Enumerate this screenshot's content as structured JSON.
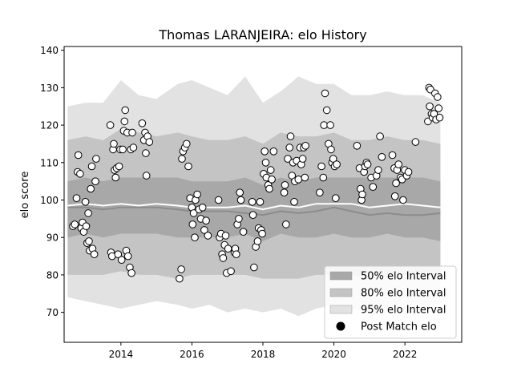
{
  "chart_data": {
    "type": "scatter",
    "title": "Thomas LARANJEIRA: elo History",
    "xlabel": "",
    "ylabel": "elo score",
    "xlim": [
      2012.4,
      2023.6
    ],
    "ylim": [
      62,
      141
    ],
    "x_ticks": [
      2014,
      2016,
      2018,
      2020,
      2022
    ],
    "y_ticks": [
      70,
      80,
      90,
      100,
      110,
      120,
      130,
      140
    ],
    "grid": false,
    "legend_position": "lower-right",
    "legend": [
      {
        "label": "50% elo Interval",
        "swatch": "band50"
      },
      {
        "label": "80% elo Interval",
        "swatch": "band80"
      },
      {
        "label": "95% elo Interval",
        "swatch": "band95"
      },
      {
        "label": "Post Match elo",
        "swatch": "dot"
      }
    ],
    "colors": {
      "band50": "#a8a8a8",
      "band80": "#c4c4c4",
      "band95": "#e2e2e2",
      "mean_line": "#8c8c8c",
      "median_line": "#ffffff",
      "point_fill": "#ffffff",
      "point_edge": "#000000"
    },
    "bands": {
      "x": [
        2012.5,
        2013.0,
        2013.5,
        2014.0,
        2014.5,
        2015.0,
        2015.6,
        2016.0,
        2016.5,
        2017.0,
        2017.5,
        2018.0,
        2018.5,
        2019.0,
        2019.5,
        2020.0,
        2020.5,
        2021.0,
        2021.5,
        2022.0,
        2022.5,
        2023.0
      ],
      "p95_upper": [
        125,
        126,
        126,
        132,
        128,
        127,
        131,
        132,
        130,
        128,
        133,
        126,
        129,
        133,
        131,
        131,
        128,
        128,
        129,
        128,
        128,
        126
      ],
      "p80_upper": [
        116,
        117,
        116,
        119,
        118,
        117,
        118,
        117,
        116,
        116,
        117,
        115,
        118,
        117,
        117,
        118,
        116,
        116,
        117,
        116,
        116,
        115
      ],
      "p50_upper": [
        105,
        106,
        105,
        106,
        106,
        106,
        106,
        105,
        105,
        105,
        106,
        104,
        106,
        105,
        106,
        106,
        106,
        106,
        106,
        106,
        106,
        105
      ],
      "p50_lower": [
        90,
        91,
        90,
        91,
        91,
        91,
        90,
        90,
        90,
        90,
        91,
        89,
        91,
        90,
        90,
        91,
        90,
        90,
        91,
        90,
        90,
        89
      ],
      "p80_lower": [
        80,
        80,
        80,
        81,
        80,
        80,
        79,
        80,
        80,
        80,
        80,
        79,
        79,
        79,
        80,
        80,
        80,
        79,
        80,
        80,
        80,
        79
      ],
      "p95_lower": [
        74,
        73,
        72,
        71,
        72,
        73,
        72,
        71,
        72,
        70,
        71,
        70,
        71,
        69,
        71,
        72,
        71,
        70,
        71,
        71,
        72,
        72
      ],
      "mean": [
        98,
        98,
        97.5,
        98,
        98,
        98,
        97.5,
        97,
        97,
        97,
        96.5,
        96,
        97,
        96.5,
        97,
        98,
        97,
        96,
        96.5,
        96,
        96,
        96.5
      ],
      "median": [
        98.5,
        99,
        98.5,
        99,
        98.5,
        99,
        98.5,
        98,
        98,
        98,
        98.5,
        97.5,
        98.5,
        98,
        99,
        99,
        99,
        98,
        98.5,
        99,
        98.5,
        98
      ]
    },
    "points": [
      [
        2012.65,
        93
      ],
      [
        2012.7,
        93.5
      ],
      [
        2012.75,
        100.5
      ],
      [
        2012.78,
        107.5
      ],
      [
        2012.8,
        112
      ],
      [
        2012.85,
        107
      ],
      [
        2012.88,
        92.5
      ],
      [
        2012.92,
        94
      ],
      [
        2012.95,
        91.5
      ],
      [
        2013.0,
        99.5
      ],
      [
        2013.02,
        93
      ],
      [
        2013.05,
        88.5
      ],
      [
        2013.08,
        96.5
      ],
      [
        2013.1,
        89
      ],
      [
        2013.12,
        86.5
      ],
      [
        2013.15,
        103
      ],
      [
        2013.18,
        109
      ],
      [
        2013.2,
        87
      ],
      [
        2013.25,
        85.5
      ],
      [
        2013.28,
        105
      ],
      [
        2013.3,
        111
      ],
      [
        2013.7,
        120
      ],
      [
        2013.72,
        86
      ],
      [
        2013.75,
        85
      ],
      [
        2013.78,
        113.5
      ],
      [
        2013.8,
        115
      ],
      [
        2013.82,
        108
      ],
      [
        2013.85,
        106
      ],
      [
        2013.88,
        108.5
      ],
      [
        2013.92,
        85.5
      ],
      [
        2013.95,
        109
      ],
      [
        2013.98,
        113.5
      ],
      [
        2014.02,
        84
      ],
      [
        2014.05,
        113.5
      ],
      [
        2014.08,
        118.5
      ],
      [
        2014.1,
        121
      ],
      [
        2014.12,
        124
      ],
      [
        2014.15,
        86.5
      ],
      [
        2014.18,
        118
      ],
      [
        2014.2,
        85
      ],
      [
        2014.25,
        82
      ],
      [
        2014.28,
        113.5
      ],
      [
        2014.3,
        80.5
      ],
      [
        2014.32,
        118
      ],
      [
        2014.35,
        114
      ],
      [
        2014.6,
        120.5
      ],
      [
        2014.65,
        116
      ],
      [
        2014.68,
        118
      ],
      [
        2014.7,
        112.5
      ],
      [
        2014.72,
        106.5
      ],
      [
        2014.75,
        117
      ],
      [
        2014.8,
        115.5
      ],
      [
        2015.65,
        79
      ],
      [
        2015.7,
        81.5
      ],
      [
        2015.72,
        111
      ],
      [
        2015.75,
        113
      ],
      [
        2015.8,
        114
      ],
      [
        2015.85,
        115
      ],
      [
        2015.9,
        109
      ],
      [
        2015.95,
        100.5
      ],
      [
        2016.0,
        98
      ],
      [
        2016.02,
        93.5
      ],
      [
        2016.05,
        96.5
      ],
      [
        2016.08,
        90
      ],
      [
        2016.1,
        100
      ],
      [
        2016.15,
        101.5
      ],
      [
        2016.2,
        97.5
      ],
      [
        2016.25,
        95
      ],
      [
        2016.3,
        98
      ],
      [
        2016.35,
        92
      ],
      [
        2016.4,
        94.5
      ],
      [
        2016.45,
        90.5
      ],
      [
        2016.75,
        100
      ],
      [
        2016.78,
        90
      ],
      [
        2016.82,
        91
      ],
      [
        2016.85,
        85.5
      ],
      [
        2016.88,
        84.5
      ],
      [
        2016.92,
        88
      ],
      [
        2016.95,
        90.5
      ],
      [
        2016.98,
        80.5
      ],
      [
        2017.02,
        87
      ],
      [
        2017.1,
        81
      ],
      [
        2017.2,
        86
      ],
      [
        2017.22,
        87
      ],
      [
        2017.25,
        85.5
      ],
      [
        2017.28,
        93.5
      ],
      [
        2017.32,
        95
      ],
      [
        2017.35,
        102
      ],
      [
        2017.38,
        100
      ],
      [
        2017.45,
        91.5
      ],
      [
        2017.7,
        99.5
      ],
      [
        2017.72,
        96
      ],
      [
        2017.75,
        82
      ],
      [
        2017.8,
        87.5
      ],
      [
        2017.85,
        89
      ],
      [
        2017.88,
        92.5
      ],
      [
        2017.92,
        99.5
      ],
      [
        2017.95,
        92
      ],
      [
        2017.98,
        91
      ],
      [
        2018.02,
        107
      ],
      [
        2018.05,
        113
      ],
      [
        2018.08,
        110
      ],
      [
        2018.1,
        106
      ],
      [
        2018.15,
        104
      ],
      [
        2018.18,
        103
      ],
      [
        2018.22,
        108
      ],
      [
        2018.25,
        105.5
      ],
      [
        2018.3,
        113
      ],
      [
        2018.6,
        102
      ],
      [
        2018.62,
        104
      ],
      [
        2018.65,
        93.5
      ],
      [
        2018.7,
        111
      ],
      [
        2018.75,
        114
      ],
      [
        2018.78,
        117
      ],
      [
        2018.82,
        106.5
      ],
      [
        2018.85,
        110
      ],
      [
        2018.88,
        99.5
      ],
      [
        2018.9,
        105
      ],
      [
        2018.95,
        110.5
      ],
      [
        2019.0,
        105.5
      ],
      [
        2019.05,
        114
      ],
      [
        2019.08,
        109.5
      ],
      [
        2019.12,
        111
      ],
      [
        2019.15,
        114
      ],
      [
        2019.18,
        106
      ],
      [
        2019.2,
        114.5
      ],
      [
        2019.6,
        102
      ],
      [
        2019.65,
        109
      ],
      [
        2019.7,
        106
      ],
      [
        2019.72,
        120
      ],
      [
        2019.75,
        128.5
      ],
      [
        2019.8,
        124
      ],
      [
        2019.85,
        115
      ],
      [
        2019.9,
        120
      ],
      [
        2019.92,
        113.5
      ],
      [
        2019.95,
        110
      ],
      [
        2019.98,
        111
      ],
      [
        2020.02,
        109
      ],
      [
        2020.05,
        100.5
      ],
      [
        2020.08,
        109.5
      ],
      [
        2020.65,
        114.5
      ],
      [
        2020.72,
        108.5
      ],
      [
        2020.75,
        103
      ],
      [
        2020.78,
        100
      ],
      [
        2020.8,
        101.5
      ],
      [
        2020.85,
        107.5
      ],
      [
        2020.88,
        109
      ],
      [
        2020.92,
        110
      ],
      [
        2020.95,
        109.5
      ],
      [
        2021.05,
        106
      ],
      [
        2021.1,
        103.5
      ],
      [
        2021.2,
        106.5
      ],
      [
        2021.25,
        108
      ],
      [
        2021.3,
        117
      ],
      [
        2021.35,
        111.5
      ],
      [
        2021.65,
        112
      ],
      [
        2021.7,
        108.5
      ],
      [
        2021.72,
        101
      ],
      [
        2021.75,
        104.5
      ],
      [
        2021.78,
        108
      ],
      [
        2021.82,
        109.5
      ],
      [
        2021.88,
        106
      ],
      [
        2021.92,
        105.5
      ],
      [
        2021.95,
        100
      ],
      [
        2022.0,
        108
      ],
      [
        2022.05,
        106.5
      ],
      [
        2022.1,
        107.5
      ],
      [
        2022.3,
        115.5
      ],
      [
        2022.65,
        121
      ],
      [
        2022.68,
        130
      ],
      [
        2022.7,
        125
      ],
      [
        2022.72,
        129.5
      ],
      [
        2022.75,
        123
      ],
      [
        2022.78,
        122
      ],
      [
        2022.82,
        123
      ],
      [
        2022.85,
        128.5
      ],
      [
        2022.88,
        121.5
      ],
      [
        2022.92,
        127.5
      ],
      [
        2022.95,
        124.5
      ],
      [
        2022.98,
        122
      ]
    ]
  }
}
